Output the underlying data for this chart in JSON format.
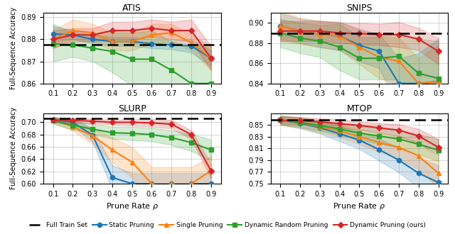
{
  "x": [
    0.1,
    0.2,
    0.3,
    0.4,
    0.5,
    0.6,
    0.7,
    0.8,
    0.9
  ],
  "atis": {
    "title": "ATIS",
    "ylim": [
      0.86,
      0.892
    ],
    "yticks": [
      0.86,
      0.87,
      0.88,
      0.89
    ],
    "baseline": 0.8775,
    "static": [
      0.8825,
      0.882,
      0.88,
      0.879,
      0.879,
      0.878,
      0.8775,
      0.877,
      0.8715
    ],
    "static_lo": [
      0.879,
      0.88,
      0.878,
      0.877,
      0.877,
      0.876,
      0.8755,
      0.874,
      0.868
    ],
    "static_hi": [
      0.886,
      0.884,
      0.882,
      0.881,
      0.881,
      0.88,
      0.8795,
      0.88,
      0.875
    ],
    "single": [
      0.88,
      0.884,
      0.883,
      0.879,
      0.879,
      0.882,
      0.883,
      0.8785,
      0.8715
    ],
    "single_lo": [
      0.876,
      0.88,
      0.879,
      0.875,
      0.875,
      0.878,
      0.879,
      0.875,
      0.866
    ],
    "single_hi": [
      0.884,
      0.889,
      0.887,
      0.883,
      0.883,
      0.887,
      0.887,
      0.882,
      0.877
    ],
    "dynrand": [
      0.878,
      0.8775,
      0.876,
      0.8745,
      0.871,
      0.871,
      0.866,
      0.86,
      0.86
    ],
    "dynrand_lo": [
      0.87,
      0.872,
      0.87,
      0.865,
      0.859,
      0.858,
      0.853,
      0.843,
      0.842
    ],
    "dynrand_hi": [
      0.887,
      0.883,
      0.882,
      0.884,
      0.883,
      0.884,
      0.879,
      0.877,
      0.878
    ],
    "dynours": [
      0.88,
      0.882,
      0.882,
      0.884,
      0.884,
      0.885,
      0.884,
      0.884,
      0.8715
    ],
    "dynours_lo": [
      0.876,
      0.879,
      0.879,
      0.88,
      0.88,
      0.881,
      0.88,
      0.879,
      0.866
    ],
    "dynours_hi": [
      0.884,
      0.885,
      0.885,
      0.888,
      0.888,
      0.889,
      0.888,
      0.889,
      0.877
    ]
  },
  "snips": {
    "title": "SNIPS",
    "ylim": [
      0.84,
      0.91
    ],
    "yticks": [
      0.84,
      0.86,
      0.88,
      0.9
    ],
    "baseline": 0.8895,
    "static": [
      0.897,
      0.892,
      0.889,
      0.887,
      0.878,
      0.872,
      0.84,
      0.84,
      0.842
    ],
    "static_lo": [
      0.884,
      0.88,
      0.876,
      0.873,
      0.862,
      0.855,
      0.815,
      0.81,
      0.8
    ],
    "static_hi": [
      0.91,
      0.904,
      0.902,
      0.901,
      0.894,
      0.889,
      0.865,
      0.87,
      0.884
    ],
    "single": [
      0.897,
      0.892,
      0.889,
      0.887,
      0.876,
      0.866,
      0.862,
      0.84,
      0.842
    ],
    "single_lo": [
      0.882,
      0.879,
      0.876,
      0.873,
      0.859,
      0.845,
      0.839,
      0.815,
      0.806
    ],
    "single_hi": [
      0.912,
      0.905,
      0.902,
      0.901,
      0.893,
      0.887,
      0.8851,
      0.865,
      0.878
    ],
    "dynrand": [
      0.89,
      0.885,
      0.882,
      0.876,
      0.865,
      0.865,
      0.867,
      0.85,
      0.845
    ],
    "dynrand_lo": [
      0.876,
      0.87,
      0.866,
      0.853,
      0.844,
      0.844,
      0.844,
      0.816,
      0.808
    ],
    "dynrand_hi": [
      0.904,
      0.9,
      0.898,
      0.899,
      0.886,
      0.886,
      0.89,
      0.884,
      0.882
    ],
    "dynours": [
      0.892,
      0.892,
      0.892,
      0.89,
      0.8895,
      0.8885,
      0.8885,
      0.884,
      0.872
    ],
    "dynours_lo": [
      0.882,
      0.882,
      0.882,
      0.88,
      0.879,
      0.878,
      0.876,
      0.873,
      0.859
    ],
    "dynours_hi": [
      0.902,
      0.902,
      0.902,
      0.9,
      0.9,
      0.899,
      0.901,
      0.895,
      0.8851
    ]
  },
  "slurp": {
    "title": "SLURP",
    "ylim": [
      0.6,
      0.715
    ],
    "yticks": [
      0.6,
      0.62,
      0.64,
      0.66,
      0.68,
      0.7
    ],
    "baseline": 0.706,
    "static": [
      0.704,
      0.7,
      0.679,
      0.61,
      0.6,
      0.6,
      0.6,
      0.6,
      0.6
    ],
    "static_lo": [
      0.7,
      0.694,
      0.668,
      0.59,
      0.583,
      0.583,
      0.583,
      0.583,
      0.583
    ],
    "static_hi": [
      0.708,
      0.706,
      0.69,
      0.63,
      0.617,
      0.617,
      0.617,
      0.617,
      0.617
    ],
    "single": [
      0.704,
      0.693,
      0.678,
      0.655,
      0.635,
      0.6,
      0.6,
      0.6,
      0.621
    ],
    "single_lo": [
      0.7,
      0.686,
      0.665,
      0.635,
      0.61,
      0.573,
      0.573,
      0.573,
      0.597
    ],
    "single_hi": [
      0.708,
      0.7,
      0.691,
      0.675,
      0.66,
      0.627,
      0.627,
      0.627,
      0.645
    ],
    "dynrand": [
      0.703,
      0.695,
      0.689,
      0.683,
      0.682,
      0.68,
      0.675,
      0.667,
      0.655
    ],
    "dynrand_lo": [
      0.697,
      0.688,
      0.681,
      0.673,
      0.671,
      0.669,
      0.663,
      0.653,
      0.638
    ],
    "dynrand_hi": [
      0.709,
      0.702,
      0.697,
      0.693,
      0.693,
      0.691,
      0.687,
      0.681,
      0.672
    ],
    "dynours": [
      0.704,
      0.703,
      0.702,
      0.7,
      0.7,
      0.699,
      0.697,
      0.68,
      0.621
    ],
    "dynours_lo": [
      0.7,
      0.699,
      0.698,
      0.696,
      0.695,
      0.693,
      0.69,
      0.673,
      0.609
    ],
    "dynours_hi": [
      0.708,
      0.707,
      0.706,
      0.704,
      0.705,
      0.705,
      0.704,
      0.687,
      0.633
    ]
  },
  "mtop": {
    "title": "MTOP",
    "ylim": [
      0.75,
      0.87
    ],
    "yticks": [
      0.75,
      0.77,
      0.79,
      0.81,
      0.83,
      0.85
    ],
    "baseline": 0.858,
    "static": [
      0.858,
      0.853,
      0.845,
      0.835,
      0.824,
      0.808,
      0.79,
      0.768,
      0.752
    ],
    "static_lo": [
      0.85,
      0.844,
      0.835,
      0.822,
      0.809,
      0.789,
      0.769,
      0.743,
      0.722
    ],
    "static_hi": [
      0.866,
      0.862,
      0.855,
      0.848,
      0.839,
      0.827,
      0.811,
      0.793,
      0.782
    ],
    "single": [
      0.858,
      0.854,
      0.847,
      0.84,
      0.83,
      0.82,
      0.812,
      0.797,
      0.768
    ],
    "single_lo": [
      0.85,
      0.845,
      0.837,
      0.829,
      0.817,
      0.804,
      0.793,
      0.774,
      0.742
    ],
    "single_hi": [
      0.866,
      0.863,
      0.857,
      0.851,
      0.843,
      0.836,
      0.831,
      0.82,
      0.794
    ],
    "dynrand": [
      0.858,
      0.854,
      0.849,
      0.843,
      0.836,
      0.831,
      0.826,
      0.817,
      0.807
    ],
    "dynrand_lo": [
      0.851,
      0.846,
      0.84,
      0.833,
      0.824,
      0.818,
      0.811,
      0.8,
      0.788
    ],
    "dynrand_hi": [
      0.865,
      0.862,
      0.858,
      0.853,
      0.848,
      0.844,
      0.841,
      0.834,
      0.826
    ],
    "dynours": [
      0.858,
      0.857,
      0.855,
      0.852,
      0.849,
      0.845,
      0.841,
      0.831,
      0.812
    ],
    "dynours_lo": [
      0.852,
      0.851,
      0.849,
      0.845,
      0.842,
      0.837,
      0.831,
      0.819,
      0.798
    ],
    "dynours_hi": [
      0.864,
      0.863,
      0.861,
      0.859,
      0.856,
      0.853,
      0.851,
      0.843,
      0.826
    ]
  },
  "colors": {
    "baseline": "#000000",
    "static": "#1f77b4",
    "single": "#ff7f0e",
    "dynrand": "#2ca02c",
    "dynours": "#d62728"
  },
  "alpha_fill": 0.2,
  "linewidth": 1.5,
  "markersize": 4.5
}
